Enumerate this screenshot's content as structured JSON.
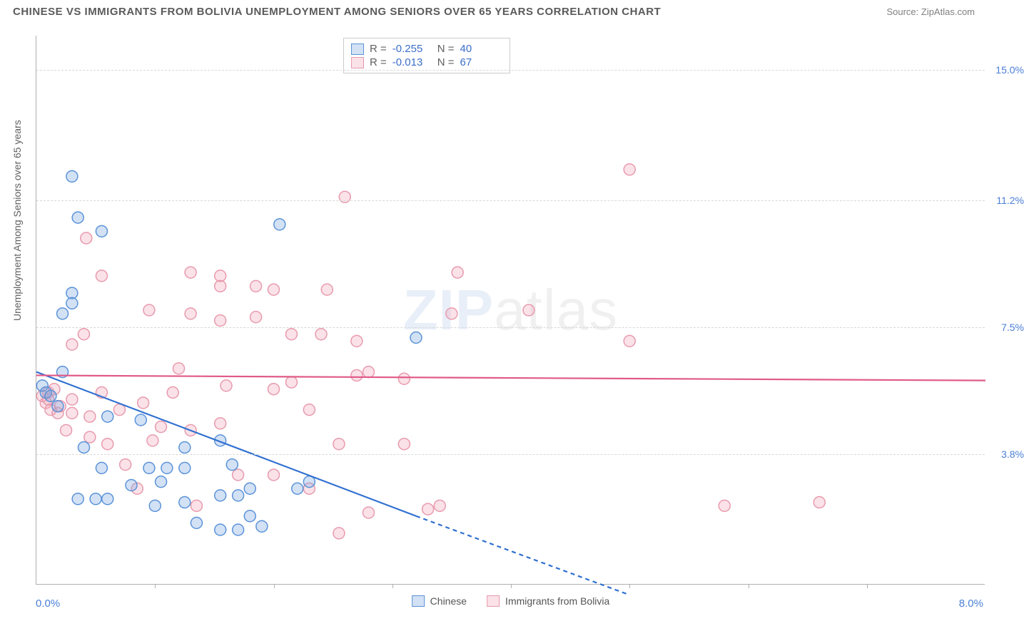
{
  "header": {
    "title": "CHINESE VS IMMIGRANTS FROM BOLIVIA UNEMPLOYMENT AMONG SENIORS OVER 65 YEARS CORRELATION CHART",
    "source": "Source: ZipAtlas.com"
  },
  "watermark": {
    "zip": "ZIP",
    "atlas": "atlas"
  },
  "axes": {
    "y_title": "Unemployment Among Seniors over 65 years",
    "x_min_label": "0.0%",
    "x_max_label": "8.0%",
    "xlim": [
      0,
      8
    ],
    "ylim": [
      0,
      16
    ],
    "y_ticks": [
      {
        "v": 3.8,
        "label": "3.8%"
      },
      {
        "v": 7.5,
        "label": "7.5%"
      },
      {
        "v": 11.2,
        "label": "11.2%"
      },
      {
        "v": 15.0,
        "label": "15.0%"
      }
    ],
    "x_tick_positions": [
      1,
      2,
      3,
      4,
      5,
      6,
      7
    ],
    "grid_color": "#d8d8d8",
    "axis_color": "#b0b0b0"
  },
  "series": {
    "chinese": {
      "label": "Chinese",
      "color_stroke": "#5a93d8",
      "color_fill": "rgba(130,170,225,0.35)",
      "line_color": "#2f6fd0",
      "R": "-0.255",
      "N": "40",
      "trend": {
        "x1": 0,
        "y1": 6.2,
        "x2": 3.2,
        "y2": 2.0,
        "dash_x2": 5.0,
        "dash_y2": -0.3
      },
      "points": [
        [
          0.3,
          11.9
        ],
        [
          0.35,
          10.7
        ],
        [
          0.55,
          10.3
        ],
        [
          0.3,
          8.5
        ],
        [
          0.3,
          8.2
        ],
        [
          0.22,
          7.9
        ],
        [
          2.05,
          10.5
        ],
        [
          0.05,
          5.8
        ],
        [
          0.08,
          5.6
        ],
        [
          0.12,
          5.5
        ],
        [
          0.6,
          4.9
        ],
        [
          0.88,
          4.8
        ],
        [
          0.4,
          4.0
        ],
        [
          0.55,
          3.4
        ],
        [
          0.95,
          3.4
        ],
        [
          1.1,
          3.4
        ],
        [
          1.25,
          3.4
        ],
        [
          1.55,
          4.2
        ],
        [
          1.25,
          4.0
        ],
        [
          0.35,
          2.5
        ],
        [
          0.5,
          2.5
        ],
        [
          0.6,
          2.5
        ],
        [
          0.8,
          2.9
        ],
        [
          1.05,
          3.0
        ],
        [
          1.25,
          2.4
        ],
        [
          1.55,
          2.6
        ],
        [
          1.7,
          2.6
        ],
        [
          1.8,
          2.8
        ],
        [
          1.65,
          3.5
        ],
        [
          1.0,
          2.3
        ],
        [
          1.35,
          1.8
        ],
        [
          1.55,
          1.6
        ],
        [
          1.7,
          1.6
        ],
        [
          1.9,
          1.7
        ],
        [
          1.8,
          2.0
        ],
        [
          2.2,
          2.8
        ],
        [
          2.3,
          3.0
        ],
        [
          0.18,
          5.2
        ],
        [
          0.22,
          6.2
        ],
        [
          3.2,
          7.2
        ]
      ]
    },
    "bolivia": {
      "label": "Immigrants from Bolivia",
      "color_stroke": "#e89aad",
      "color_fill": "rgba(240,160,180,0.30)",
      "line_color": "#e05a88",
      "R": "-0.013",
      "N": "67",
      "trend": {
        "x1": 0,
        "y1": 6.1,
        "x2": 8.0,
        "y2": 5.95
      },
      "points": [
        [
          0.42,
          10.1
        ],
        [
          1.3,
          9.1
        ],
        [
          1.55,
          9.0
        ],
        [
          1.55,
          8.7
        ],
        [
          1.85,
          8.7
        ],
        [
          2.0,
          8.6
        ],
        [
          2.45,
          8.6
        ],
        [
          2.6,
          11.3
        ],
        [
          3.55,
          9.1
        ],
        [
          4.15,
          8.0
        ],
        [
          5.0,
          12.1
        ],
        [
          5.0,
          7.1
        ],
        [
          0.3,
          7.0
        ],
        [
          0.95,
          8.0
        ],
        [
          1.3,
          7.9
        ],
        [
          1.55,
          7.7
        ],
        [
          1.85,
          7.8
        ],
        [
          2.15,
          7.3
        ],
        [
          2.4,
          7.3
        ],
        [
          2.7,
          7.1
        ],
        [
          2.7,
          6.1
        ],
        [
          2.0,
          5.7
        ],
        [
          1.6,
          5.8
        ],
        [
          1.15,
          5.6
        ],
        [
          1.2,
          6.3
        ],
        [
          0.9,
          5.3
        ],
        [
          0.7,
          5.1
        ],
        [
          0.55,
          5.6
        ],
        [
          0.3,
          5.4
        ],
        [
          0.15,
          5.7
        ],
        [
          0.1,
          5.6
        ],
        [
          0.1,
          5.4
        ],
        [
          0.2,
          5.2
        ],
        [
          0.3,
          5.0
        ],
        [
          0.45,
          4.9
        ],
        [
          0.45,
          4.3
        ],
        [
          0.6,
          4.1
        ],
        [
          0.98,
          4.2
        ],
        [
          0.75,
          3.5
        ],
        [
          0.85,
          2.8
        ],
        [
          1.05,
          4.6
        ],
        [
          1.3,
          4.5
        ],
        [
          1.55,
          4.7
        ],
        [
          1.7,
          3.2
        ],
        [
          2.0,
          3.2
        ],
        [
          2.15,
          5.9
        ],
        [
          2.3,
          5.1
        ],
        [
          2.55,
          4.1
        ],
        [
          2.8,
          6.2
        ],
        [
          2.8,
          2.1
        ],
        [
          2.55,
          1.5
        ],
        [
          3.3,
          2.2
        ],
        [
          2.3,
          2.8
        ],
        [
          1.35,
          2.3
        ],
        [
          3.1,
          6.0
        ],
        [
          3.5,
          7.9
        ],
        [
          3.4,
          2.3
        ],
        [
          3.1,
          4.1
        ],
        [
          0.05,
          5.5
        ],
        [
          0.08,
          5.3
        ],
        [
          0.12,
          5.1
        ],
        [
          0.18,
          5.0
        ],
        [
          0.4,
          7.3
        ],
        [
          5.8,
          2.3
        ],
        [
          6.6,
          2.4
        ],
        [
          0.25,
          4.5
        ],
        [
          0.55,
          9.0
        ]
      ]
    }
  },
  "stats_legend": {
    "R_label": "R =",
    "N_label": "N ="
  },
  "style": {
    "marker_radius": 8,
    "marker_stroke_width": 1.5,
    "trend_line_width": 2.2,
    "tick_label_color": "#4a7fd6",
    "title_color": "#5a5a5a",
    "background": "#ffffff"
  }
}
